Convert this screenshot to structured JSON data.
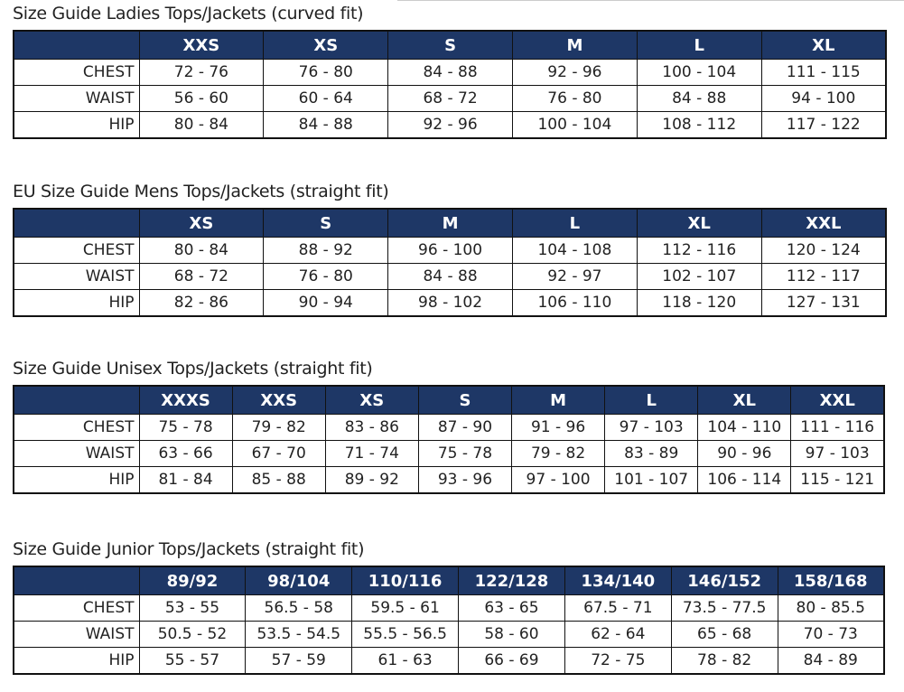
{
  "tables": [
    {
      "title": "Size Guide Ladies Tops/Jackets (curved fit)",
      "columns": [
        "XXS",
        "XS",
        "S",
        "M",
        "L",
        "XL"
      ],
      "rows": [
        {
          "label": "CHEST",
          "cells": [
            "72 - 76",
            "76 - 80",
            "84 - 88",
            "92 - 96",
            "100 - 104",
            "111 - 115"
          ]
        },
        {
          "label": "WAIST",
          "cells": [
            "56 - 60",
            "60 - 64",
            "68 - 72",
            "76 - 80",
            "84 - 88",
            "94 - 100"
          ]
        },
        {
          "label": "HIP",
          "cells": [
            "80 - 84",
            "84 - 88",
            "92 - 96",
            "100 - 104",
            "108 - 112",
            "117 - 122"
          ]
        }
      ]
    },
    {
      "title": "EU Size Guide Mens Tops/Jackets (straight fit)",
      "columns": [
        "XS",
        "S",
        "M",
        "L",
        "XL",
        "XXL"
      ],
      "rows": [
        {
          "label": "CHEST",
          "cells": [
            "80 - 84",
            "88 - 92",
            "96 - 100",
            "104 - 108",
            "112 - 116",
            "120 - 124"
          ]
        },
        {
          "label": "WAIST",
          "cells": [
            "68 - 72",
            "76 - 80",
            "84 - 88",
            "92 - 97",
            "102 - 107",
            "112 - 117"
          ]
        },
        {
          "label": "HIP",
          "cells": [
            "82 - 86",
            "90 - 94",
            "98 - 102",
            "106 - 110",
            "118 - 120",
            "127 - 131"
          ]
        }
      ]
    },
    {
      "title": "Size Guide Unisex Tops/Jackets (straight fit)",
      "columns": [
        "XXXS",
        "XXS",
        "XS",
        "S",
        "M",
        "L",
        "XL",
        "XXL"
      ],
      "rows": [
        {
          "label": "CHEST",
          "cells": [
            "75 - 78",
            "79 - 82",
            "83 - 86",
            "87 - 90",
            "91 - 96",
            "97 - 103",
            "104 - 110",
            "111 - 116"
          ]
        },
        {
          "label": "WAIST",
          "cells": [
            "63 - 66",
            "67 - 70",
            "71 - 74",
            "75 - 78",
            "79 - 82",
            "83 - 89",
            "90 - 96",
            "97 - 103"
          ]
        },
        {
          "label": "HIP",
          "cells": [
            "81 - 84",
            "85 - 88",
            "89 - 92",
            "93 - 96",
            "97 - 100",
            "101 - 107",
            "106 - 114",
            "115 - 121"
          ]
        }
      ]
    },
    {
      "title": "Size Guide Junior Tops/Jackets (straight fit)",
      "columns": [
        "89/92",
        "98/104",
        "110/116",
        "122/128",
        "134/140",
        "146/152",
        "158/168"
      ],
      "rows": [
        {
          "label": "CHEST",
          "cells": [
            "53 - 55",
            "56.5 - 58",
            "59.5 - 61",
            "63 - 65",
            "67.5 - 71",
            "73.5 - 77.5",
            "80 - 85.5"
          ]
        },
        {
          "label": "WAIST",
          "cells": [
            "50.5 - 52",
            "53.5 - 54.5",
            "55.5 - 56.5",
            "58 - 60",
            "62 - 64",
            "65 - 68",
            "70 - 73"
          ]
        },
        {
          "label": "HIP",
          "cells": [
            "55 - 57",
            "57 - 59",
            "61 - 63",
            "66 - 69",
            "72 - 75",
            "78 - 82",
            "84 - 89"
          ]
        }
      ]
    }
  ]
}
